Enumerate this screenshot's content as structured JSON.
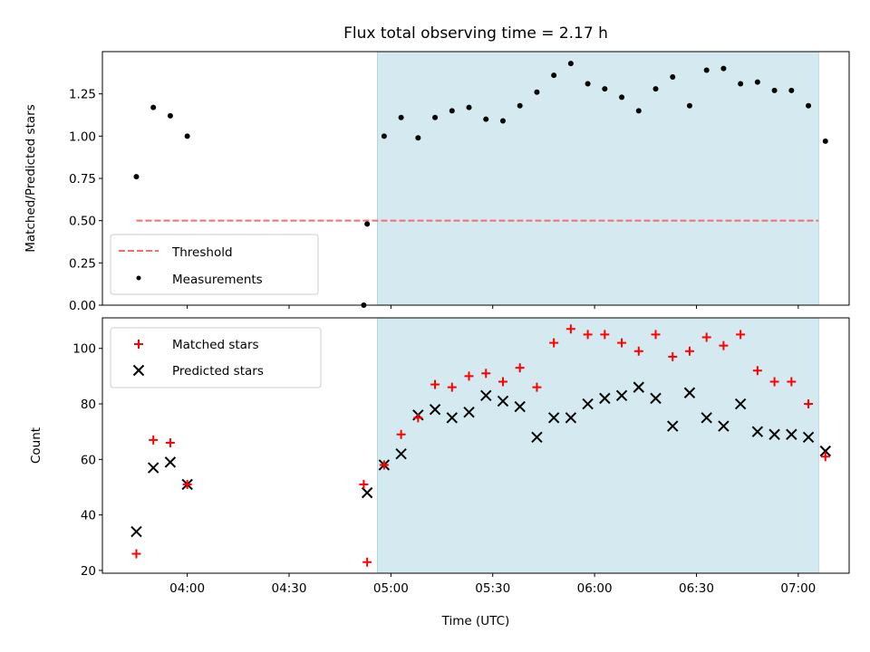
{
  "chart_data": [
    {
      "type": "scatter",
      "title": "Flux total observing time = 2.17 h",
      "ylabel": "Matched/Predicted stars",
      "xlim": [
        "03:35",
        "07:15"
      ],
      "ylim": [
        0.0,
        1.5
      ],
      "yticks": [
        "0.00",
        "0.25",
        "0.50",
        "0.75",
        "1.00",
        "1.25"
      ],
      "yticks_values": [
        0,
        0.25,
        0.5,
        0.75,
        1.0,
        1.25
      ],
      "shaded_span": {
        "start": "04:56",
        "end": "07:06",
        "color": "#d4eaf0"
      },
      "threshold": {
        "name": "Threshold",
        "value": 0.5,
        "from": "03:45",
        "to": "07:06",
        "color": "#f46d6d"
      },
      "measurements": {
        "name": "Measurements",
        "color": "#000000",
        "x": [
          "03:45",
          "03:50",
          "03:55",
          "04:00",
          "04:52",
          "04:53",
          "04:58",
          "05:03",
          "05:08",
          "05:13",
          "05:18",
          "05:23",
          "05:28",
          "05:33",
          "05:38",
          "05:43",
          "05:48",
          "05:53",
          "05:58",
          "06:03",
          "06:08",
          "06:13",
          "06:18",
          "06:23",
          "06:28",
          "06:33",
          "06:38",
          "06:43",
          "06:48",
          "06:53",
          "06:58",
          "07:03",
          "07:08"
        ],
        "y": [
          0.76,
          1.17,
          1.12,
          1.0,
          0.0,
          0.48,
          1.0,
          1.11,
          0.99,
          1.11,
          1.15,
          1.17,
          1.1,
          1.09,
          1.18,
          1.26,
          1.36,
          1.43,
          1.31,
          1.28,
          1.23,
          1.15,
          1.28,
          1.35,
          1.18,
          1.39,
          1.4,
          1.31,
          1.32,
          1.27,
          1.27,
          1.18,
          0.97
        ]
      },
      "legend": {
        "placement": "lower-left",
        "entries": [
          "Threshold",
          "Measurements"
        ]
      }
    },
    {
      "type": "scatter",
      "xlabel": "Time (UTC)",
      "ylabel": "Count",
      "xlim": [
        "03:35",
        "07:15"
      ],
      "ylim": [
        19,
        111
      ],
      "yticks": [
        "20",
        "40",
        "60",
        "80",
        "100"
      ],
      "yticks_values": [
        20,
        40,
        60,
        80,
        100
      ],
      "xticks": [
        "04:00",
        "04:30",
        "05:00",
        "05:30",
        "06:00",
        "06:30",
        "07:00"
      ],
      "shaded_span": {
        "start": "04:56",
        "end": "07:06",
        "color": "#d4eaf0"
      },
      "series": [
        {
          "name": "Matched stars",
          "marker": "plus",
          "color": "#ff0000",
          "x": [
            "03:45",
            "03:50",
            "03:55",
            "04:00",
            "04:52",
            "04:53",
            "04:58",
            "05:03",
            "05:08",
            "05:13",
            "05:18",
            "05:23",
            "05:28",
            "05:33",
            "05:38",
            "05:43",
            "05:48",
            "05:53",
            "05:58",
            "06:03",
            "06:08",
            "06:13",
            "06:18",
            "06:23",
            "06:28",
            "06:33",
            "06:38",
            "06:43",
            "06:48",
            "06:53",
            "06:58",
            "07:03",
            "07:08"
          ],
          "y": [
            26,
            67,
            66,
            51,
            51,
            23,
            58,
            69,
            75,
            87,
            86,
            90,
            91,
            88,
            93,
            86,
            102,
            107,
            105,
            105,
            102,
            99,
            105,
            97,
            99,
            104,
            101,
            105,
            92,
            88,
            88,
            80,
            61
          ]
        },
        {
          "name": "Predicted stars",
          "marker": "x",
          "color": "#000000",
          "x": [
            "03:45",
            "03:50",
            "03:55",
            "04:00",
            "04:53",
            "04:58",
            "05:03",
            "05:08",
            "05:13",
            "05:18",
            "05:23",
            "05:28",
            "05:33",
            "05:38",
            "05:43",
            "05:48",
            "05:53",
            "05:58",
            "06:03",
            "06:08",
            "06:13",
            "06:18",
            "06:23",
            "06:28",
            "06:33",
            "06:38",
            "06:43",
            "06:48",
            "06:53",
            "06:58",
            "07:03",
            "07:08"
          ],
          "y": [
            34,
            57,
            59,
            51,
            48,
            58,
            62,
            76,
            78,
            75,
            77,
            83,
            81,
            79,
            68,
            75,
            75,
            80,
            82,
            83,
            86,
            82,
            72,
            84,
            75,
            72,
            80,
            70,
            69,
            69,
            68,
            63
          ]
        }
      ],
      "legend": {
        "placement": "upper-left",
        "entries": [
          "Matched stars",
          "Predicted stars"
        ]
      }
    }
  ]
}
